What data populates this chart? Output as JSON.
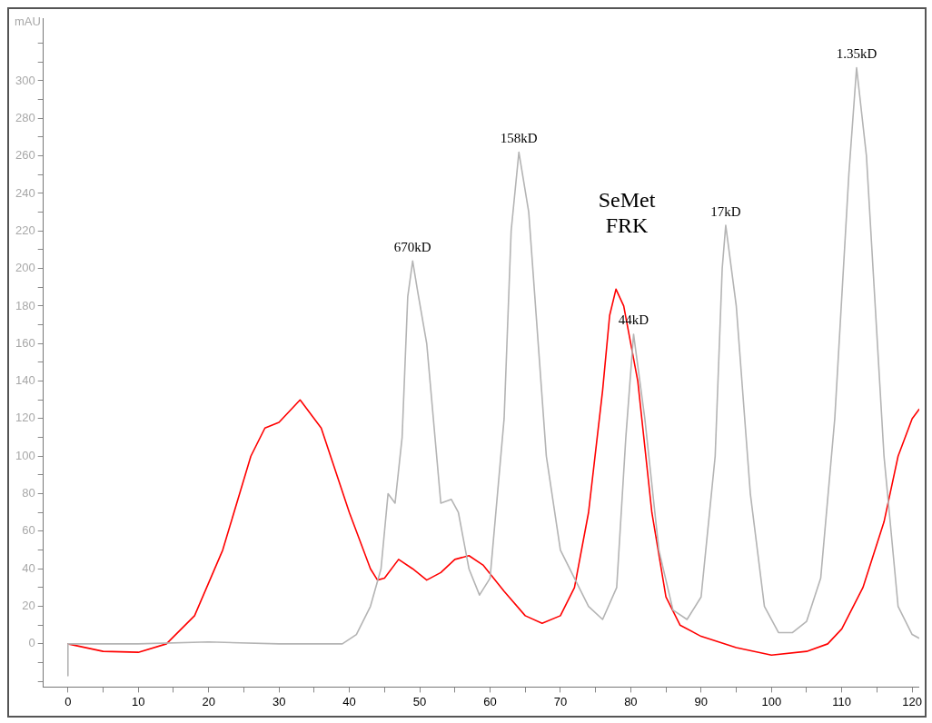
{
  "chart_data": {
    "type": "line",
    "ylabel": "mAU",
    "xlim": [
      -3.5,
      121
    ],
    "ylim": [
      -23,
      333
    ],
    "xticks": [
      0,
      {
        "value": 5,
        "label": null
      },
      10,
      {
        "value": 15,
        "label": null
      },
      20,
      {
        "value": 25,
        "label": null
      },
      30,
      {
        "value": 35,
        "label": null
      },
      40,
      {
        "value": 45,
        "label": null
      },
      50,
      {
        "value": 55,
        "label": null
      },
      60,
      {
        "value": 65,
        "label": null
      },
      70,
      {
        "value": 75,
        "label": null
      },
      80,
      {
        "value": 85,
        "label": null
      },
      90,
      {
        "value": 95,
        "label": null
      },
      100,
      {
        "value": 105,
        "label": null
      },
      110,
      {
        "value": 115,
        "label": null
      },
      120
    ],
    "yticks": [
      {
        "value": -20,
        "label": null
      },
      {
        "value": -10,
        "label": null
      },
      0,
      {
        "value": 10,
        "label": null
      },
      20,
      {
        "value": 30,
        "label": null
      },
      40,
      {
        "value": 50,
        "label": null
      },
      60,
      {
        "value": 70,
        "label": null
      },
      80,
      {
        "value": 90,
        "label": null
      },
      100,
      {
        "value": 110,
        "label": null
      },
      120,
      {
        "value": 130,
        "label": null
      },
      140,
      {
        "value": 150,
        "label": null
      },
      160,
      {
        "value": 170,
        "label": null
      },
      180,
      {
        "value": 190,
        "label": null
      },
      200,
      {
        "value": 210,
        "label": null
      },
      220,
      {
        "value": 230,
        "label": null
      },
      240,
      {
        "value": 250,
        "label": null
      },
      260,
      {
        "value": 270,
        "label": null
      },
      280,
      {
        "value": 290,
        "label": null
      },
      300,
      {
        "value": 310,
        "label": null
      },
      {
        "value": 320,
        "label": null
      }
    ],
    "grid": false,
    "legend": false,
    "marker": "none",
    "line_style": "solid",
    "series": [
      {
        "color": "#b4b4b4",
        "x": [
          0,
          0,
          10,
          20,
          30,
          39,
          41,
          43,
          44.5,
          45.5,
          46.5,
          47.5,
          48.3,
          49,
          49.7,
          51,
          53,
          54.5,
          55.5,
          57,
          58.5,
          60,
          62,
          63,
          64.1,
          65.5,
          68,
          70,
          72,
          74,
          76,
          78,
          79.3,
          80.4,
          82,
          84,
          86,
          88,
          90,
          92,
          93,
          93.5,
          95,
          97,
          99,
          101,
          103,
          105,
          107,
          109,
          111,
          112.1,
          113.5,
          116,
          118,
          120,
          121
        ],
        "values": [
          -17,
          0,
          0,
          1,
          0,
          0,
          5,
          20,
          40,
          80,
          75,
          110,
          185,
          204,
          188,
          160,
          75,
          77,
          70,
          40,
          26,
          35,
          120,
          220,
          262,
          230,
          100,
          50,
          35,
          20,
          13,
          30,
          110,
          165,
          120,
          50,
          18,
          13,
          25,
          100,
          200,
          223,
          180,
          80,
          20,
          6,
          6,
          12,
          35,
          120,
          250,
          307,
          260,
          100,
          20,
          5,
          3
        ]
      },
      {
        "color": "#ff0000",
        "x": [
          0,
          5,
          10,
          14,
          18,
          22,
          26,
          28,
          30,
          33,
          36,
          40,
          43,
          44,
          45,
          47,
          49,
          51,
          53,
          55,
          57,
          59,
          62,
          65,
          67.4,
          70,
          72,
          74,
          76,
          77,
          77.9,
          79,
          81,
          83,
          85,
          87,
          90,
          95,
          100,
          105,
          108,
          110,
          113,
          116,
          118,
          120,
          121
        ],
        "values": [
          0,
          -4,
          -4.5,
          0,
          15,
          50,
          100,
          115,
          118,
          130,
          115,
          70,
          40,
          34,
          35,
          45,
          40,
          34,
          38,
          45,
          47,
          42,
          28,
          15,
          11,
          15,
          30,
          70,
          135,
          175,
          189,
          180,
          140,
          70,
          25,
          10,
          4,
          -2,
          -6,
          -4,
          0,
          8,
          30,
          65,
          100,
          120,
          125
        ]
      }
    ],
    "annotations": [
      {
        "text": "670kD",
        "x": 49,
        "y": 204
      },
      {
        "text": "158kD",
        "x": 64.1,
        "y": 262
      },
      {
        "text": "44kD",
        "x": 80.4,
        "y": 165
      },
      {
        "text": "17kD",
        "x": 93.5,
        "y": 223
      },
      {
        "text": "1.35kD",
        "x": 112.1,
        "y": 307
      },
      "SeMet\nFRK"
    ]
  }
}
